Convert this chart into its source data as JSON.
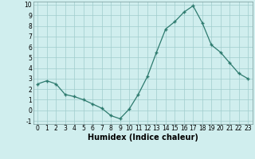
{
  "x": [
    0,
    1,
    2,
    3,
    4,
    5,
    6,
    7,
    8,
    9,
    10,
    11,
    12,
    13,
    14,
    15,
    16,
    17,
    18,
    19,
    20,
    21,
    22,
    23
  ],
  "y": [
    2.5,
    2.8,
    2.5,
    1.5,
    1.3,
    1.0,
    0.6,
    0.2,
    -0.5,
    -0.8,
    0.1,
    1.5,
    3.2,
    5.5,
    7.7,
    8.4,
    9.3,
    9.9,
    8.3,
    6.2,
    5.5,
    4.5,
    3.5,
    3.0
  ],
  "xlabel": "Humidex (Indice chaleur)",
  "ylim": [
    -1.3,
    10.3
  ],
  "xlim": [
    -0.5,
    23.5
  ],
  "yticks": [
    -1,
    0,
    1,
    2,
    3,
    4,
    5,
    6,
    7,
    8,
    9,
    10
  ],
  "xticks": [
    0,
    1,
    2,
    3,
    4,
    5,
    6,
    7,
    8,
    9,
    10,
    11,
    12,
    13,
    14,
    15,
    16,
    17,
    18,
    19,
    20,
    21,
    22,
    23
  ],
  "line_color": "#2d7a6e",
  "marker": "+",
  "bg_color": "#d0eeee",
  "grid_color": "#a0cccc",
  "tick_fontsize": 5.5,
  "xlabel_fontsize": 7
}
